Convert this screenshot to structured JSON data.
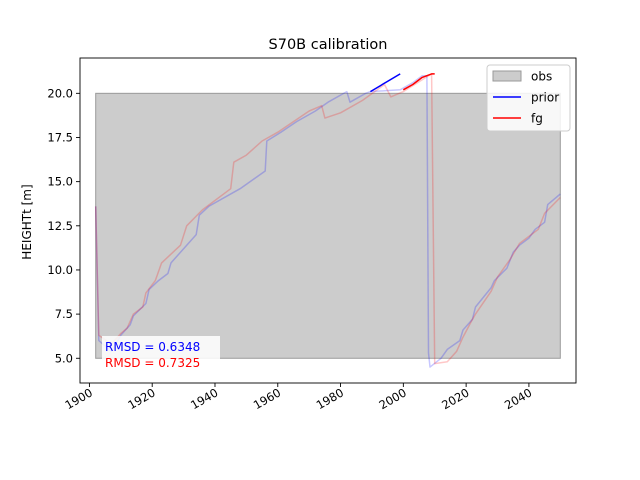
{
  "chart_data": {
    "type": "line",
    "title": "S70B calibration",
    "xlabel": "",
    "ylabel": "HEIGHTt [m]",
    "xlim": [
      1897,
      2055
    ],
    "ylim": [
      3.6,
      22.0
    ],
    "xticks": [
      1900,
      1920,
      1940,
      1960,
      1980,
      2000,
      2020,
      2040
    ],
    "yticks": [
      5.0,
      7.5,
      10.0,
      12.5,
      15.0,
      17.5,
      20.0
    ],
    "ytick_labels": [
      "5.0",
      "7.5",
      "10.0",
      "12.5",
      "15.0",
      "17.5",
      "20.0"
    ],
    "grid": false,
    "legend_position": "top-right",
    "obs_box": {
      "x0": 1902,
      "x1": 2050,
      "y0": 5.0,
      "y1": 20.0,
      "color": "#cccccc",
      "edge": "#9a9a9a"
    },
    "series": [
      {
        "name": "prior",
        "color": "#0000ff",
        "faded_points": [
          [
            1902,
            13.6
          ],
          [
            1903,
            6.0
          ],
          [
            1907,
            5.4
          ],
          [
            1910,
            6.3
          ],
          [
            1913,
            6.9
          ],
          [
            1914,
            7.4
          ],
          [
            1918,
            8.1
          ],
          [
            1919,
            8.9
          ],
          [
            1922,
            9.4
          ],
          [
            1925,
            9.8
          ],
          [
            1926,
            10.4
          ],
          [
            1934,
            12.0
          ],
          [
            1935,
            13.1
          ],
          [
            1938,
            13.6
          ],
          [
            1948,
            14.6
          ],
          [
            1956,
            15.6
          ],
          [
            1956.5,
            17.3
          ],
          [
            1961,
            17.8
          ],
          [
            1966,
            18.4
          ],
          [
            1972,
            19.0
          ],
          [
            1976,
            19.5
          ],
          [
            1982,
            20.1
          ],
          [
            1983,
            19.5
          ],
          [
            1988,
            20.0
          ],
          [
            1989.5,
            20.1
          ],
          [
            1999,
            20.2
          ],
          [
            2003,
            20.6
          ],
          [
            2006,
            21.0
          ],
          [
            2007.5,
            21.0
          ],
          [
            2008,
            5.3
          ],
          [
            2008.5,
            4.5
          ],
          [
            2012,
            5.0
          ],
          [
            2014,
            5.5
          ],
          [
            2018,
            6.0
          ],
          [
            2019,
            6.6
          ],
          [
            2022,
            7.2
          ],
          [
            2023,
            7.9
          ],
          [
            2028,
            9.0
          ],
          [
            2029,
            9.4
          ],
          [
            2033,
            10.1
          ],
          [
            2035,
            11.0
          ],
          [
            2037,
            11.4
          ],
          [
            2040,
            11.8
          ],
          [
            2042,
            12.3
          ],
          [
            2045,
            12.7
          ],
          [
            2046,
            13.7
          ],
          [
            2050,
            14.3
          ]
        ],
        "highlight_points": [
          [
            1989.5,
            20.1
          ],
          [
            1999,
            21.1
          ]
        ]
      },
      {
        "name": "fg",
        "color": "#ff0000",
        "faded_points": [
          [
            1902,
            13.6
          ],
          [
            1903,
            6.3
          ],
          [
            1907,
            5.8
          ],
          [
            1910,
            6.4
          ],
          [
            1912,
            6.7
          ],
          [
            1914,
            7.5
          ],
          [
            1917,
            7.9
          ],
          [
            1918,
            8.7
          ],
          [
            1921,
            9.4
          ],
          [
            1923,
            10.4
          ],
          [
            1929,
            11.4
          ],
          [
            1931,
            12.5
          ],
          [
            1936,
            13.4
          ],
          [
            1945,
            14.6
          ],
          [
            1946,
            16.1
          ],
          [
            1950,
            16.5
          ],
          [
            1955,
            17.3
          ],
          [
            1960,
            17.8
          ],
          [
            1970,
            19.0
          ],
          [
            1974,
            19.3
          ],
          [
            1975,
            18.6
          ],
          [
            1980,
            18.9
          ],
          [
            1987,
            19.6
          ],
          [
            1994,
            20.5
          ],
          [
            1996,
            19.8
          ],
          [
            2000,
            20.1
          ],
          [
            2009,
            21.1
          ],
          [
            2010,
            4.7
          ],
          [
            2014,
            4.8
          ],
          [
            2017,
            5.4
          ],
          [
            2019,
            6.2
          ],
          [
            2022,
            7.2
          ],
          [
            2023,
            7.5
          ],
          [
            2028,
            8.8
          ],
          [
            2030,
            9.6
          ],
          [
            2034,
            10.6
          ],
          [
            2037,
            11.5
          ],
          [
            2043,
            12.3
          ],
          [
            2045,
            13.2
          ],
          [
            2050,
            14.1
          ]
        ],
        "highlight_points": [
          [
            2000,
            20.2
          ],
          [
            2003,
            20.5
          ],
          [
            2006,
            20.9
          ],
          [
            2009,
            21.1
          ],
          [
            2010,
            21.1
          ]
        ]
      }
    ],
    "legend": [
      {
        "label": "obs",
        "kind": "patch"
      },
      {
        "label": "prior",
        "kind": "line",
        "color": "#0000ff"
      },
      {
        "label": "fg",
        "kind": "line",
        "color": "#ff0000"
      }
    ],
    "annotations": [
      {
        "text": "RMSD = 0.6348",
        "color": "#0000ff"
      },
      {
        "text": "RMSD = 0.7325",
        "color": "#ff0000"
      }
    ]
  }
}
